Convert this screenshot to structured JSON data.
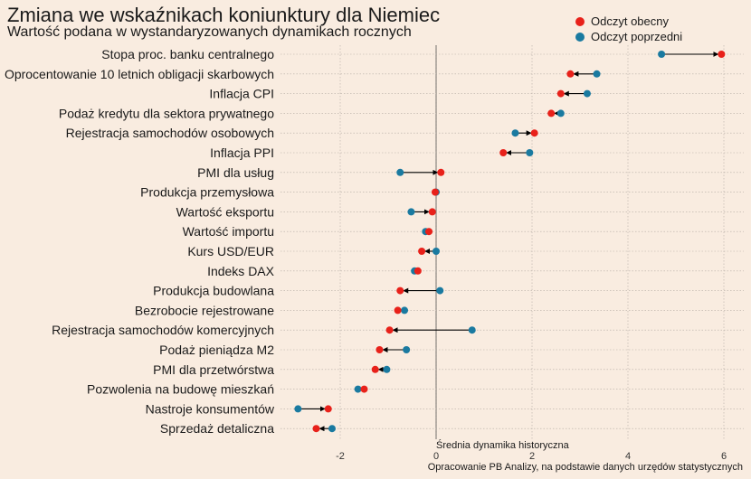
{
  "title": "Zmiana we wskaźnikach koniunktury dla Niemiec",
  "subtitle": "Wartość podana w wystandaryzowanych dynamikach rocznych",
  "colors": {
    "background": "#f9ece0",
    "current": "#e8211a",
    "previous": "#1a7aa0",
    "arrow": "#000000",
    "grid": "#b5aca3"
  },
  "chart_data": {
    "type": "dumbbell",
    "title": "Zmiana we wskaźnikach koniunktury dla Niemiec",
    "subtitle": "Wartość podana w wystandaryzowanych dynamikach rocznych",
    "xlabel": "Średnia dynamika historyczna",
    "ylabel": "",
    "xlim": [
      -2.9,
      6.3
    ],
    "xticks": [
      -2,
      0,
      2,
      4,
      6
    ],
    "grid": true,
    "legend": {
      "position": "top-right",
      "entries": [
        "Odczyt obecny",
        "Odczyt poprzedni"
      ]
    },
    "reference_line": 0,
    "categories": [
      "Stopa proc. banku centralnego",
      "Oprocentowanie 10 letnich obligacji skarbowych",
      "Inflacja CPI",
      "Podaż kredytu dla sektora prywatnego",
      "Rejestracja samochodów osobowych",
      "Inflacja PPI",
      "PMI dla usług",
      "Produkcja przemysłowa",
      "Wartość eksportu",
      "Wartość importu",
      "Kurs USD/EUR",
      "Indeks DAX",
      "Produkcja budowlana",
      "Bezrobocie rejestrowane",
      "Rejestracja samochodów komercyjnych",
      "Podaż pieniądza M2",
      "PMI dla przetwórstwa",
      "Pozwolenia na budowę mieszkań",
      "Nastroje konsumentów",
      "Sprzedaż detaliczna"
    ],
    "series": [
      {
        "name": "Odczyt obecny",
        "values": [
          5.95,
          2.8,
          2.6,
          2.4,
          2.05,
          1.4,
          0.1,
          -0.02,
          -0.08,
          -0.15,
          -0.3,
          -0.38,
          -0.75,
          -0.8,
          -0.97,
          -1.18,
          -1.27,
          -1.5,
          -2.25,
          -2.5
        ]
      },
      {
        "name": "Odczyt poprzedni",
        "values": [
          4.7,
          3.35,
          3.15,
          2.6,
          1.65,
          1.95,
          -0.75,
          0.0,
          -0.52,
          -0.22,
          0.0,
          -0.45,
          0.08,
          -0.66,
          0.75,
          -0.62,
          -1.03,
          -1.63,
          -2.88,
          -2.17
        ]
      }
    ],
    "source_note": "Opracowanie PB Analizy, na podstawie danych urzędów statystycznych"
  }
}
